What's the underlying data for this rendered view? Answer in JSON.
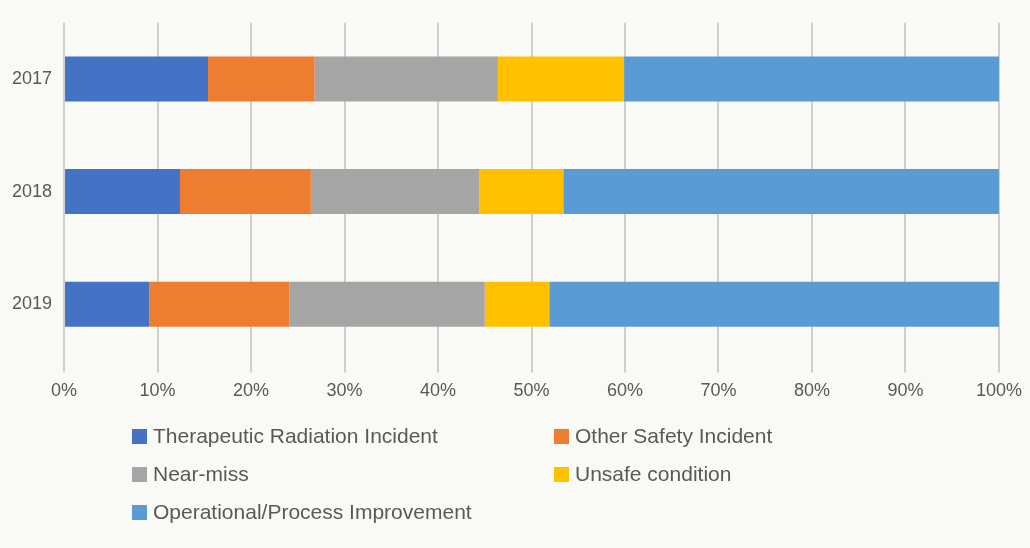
{
  "chart_data": {
    "type": "bar",
    "orientation": "horizontal",
    "stacked": true,
    "categories": [
      "2017",
      "2018",
      "2019"
    ],
    "series": [
      {
        "name": "Therapeutic Radiation Incident",
        "color": "#4472c4",
        "values": [
          15.4,
          12.4,
          9.1
        ]
      },
      {
        "name": "Other Safety Incident",
        "color": "#ed7d31",
        "values": [
          11.4,
          14.0,
          15.0
        ]
      },
      {
        "name": "Near-miss",
        "color": "#a5a5a5",
        "values": [
          19.6,
          18.0,
          20.9
        ]
      },
      {
        "name": "Unsafe condition",
        "color": "#ffc000",
        "values": [
          13.5,
          9.0,
          6.9
        ]
      },
      {
        "name": "Operational/Process Improvement",
        "color": "#5b9bd5",
        "values": [
          40.1,
          46.6,
          48.1
        ]
      }
    ],
    "xlim": [
      0,
      100
    ],
    "xticks": [
      {
        "value": 0,
        "label": "0%"
      },
      {
        "value": 10,
        "label": "10%"
      },
      {
        "value": 20,
        "label": "20%"
      },
      {
        "value": 30,
        "label": "30%"
      },
      {
        "value": 40,
        "label": "40%"
      },
      {
        "value": 50,
        "label": "50%"
      },
      {
        "value": 60,
        "label": "60%"
      },
      {
        "value": 70,
        "label": "70%"
      },
      {
        "value": 80,
        "label": "80%"
      },
      {
        "value": 90,
        "label": "90%"
      },
      {
        "value": 100,
        "label": "100%"
      }
    ],
    "grid": "x",
    "legend": "bottom"
  }
}
